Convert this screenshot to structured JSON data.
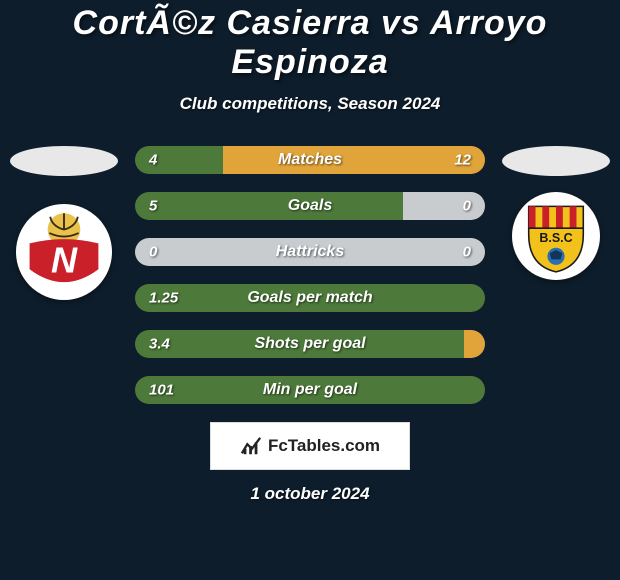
{
  "background_color": "#0e1d2b",
  "text_color": "#ffffff",
  "title": "CortÃ©z Casierra vs Arroyo Espinoza",
  "subtitle": "Club competitions, Season 2024",
  "date": "1 october 2024",
  "ellipse_color": "#e8e8e8",
  "logo_box_bg": "#ffffff",
  "logo_text": "FcTables.com",
  "left_crest": {
    "bg": "#ffffff",
    "ball_color": "#e8c34b",
    "banner_color": "#c9202a",
    "letter": "N",
    "letter_color": "#ffffff"
  },
  "right_crest": {
    "bg": "#ffffff",
    "shield_top_stripes": [
      "#c9202a",
      "#f3c21a"
    ],
    "shield_bottom": "#f3c21a",
    "text": "B.S.C",
    "ball_color": "#2a6fb0"
  },
  "bar_colors": {
    "left": "#4d7a3a",
    "right": "#e0a43a",
    "empty": "#c8cccf"
  },
  "stats": [
    {
      "label": "Matches",
      "left_val": "4",
      "right_val": "12",
      "left_pct": 25,
      "right_pct": 75
    },
    {
      "label": "Goals",
      "left_val": "5",
      "right_val": "0",
      "left_pct": 76.5,
      "right_pct": 0,
      "empty_pct": 23.5
    },
    {
      "label": "Hattricks",
      "left_val": "0",
      "right_val": "0",
      "left_pct": 0,
      "right_pct": 0,
      "empty_pct": 100
    },
    {
      "label": "Goals per match",
      "left_val": "1.25",
      "right_val": "",
      "left_pct": 100,
      "right_pct": 0
    },
    {
      "label": "Shots per goal",
      "left_val": "3.4",
      "right_val": "",
      "left_pct": 94,
      "right_pct": 6
    },
    {
      "label": "Min per goal",
      "left_val": "101",
      "right_val": "",
      "left_pct": 100,
      "right_pct": 0
    }
  ]
}
